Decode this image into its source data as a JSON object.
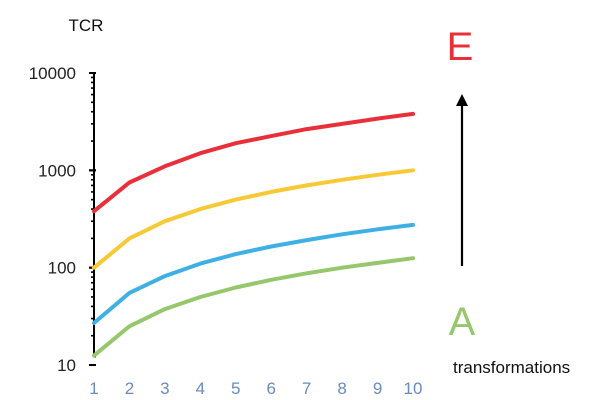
{
  "chart_data": {
    "type": "line",
    "title": "",
    "ylabel": "TCR",
    "xlabel": "transformations",
    "y_scale": "log",
    "ylim": [
      10,
      10000
    ],
    "y_ticks": [
      10,
      100,
      1000,
      10000
    ],
    "y_tick_labels": [
      "10",
      "100",
      "1000",
      "10000"
    ],
    "x": [
      1,
      2,
      3,
      4,
      5,
      6,
      7,
      8,
      9,
      10
    ],
    "x_tick_labels": [
      "1",
      "2",
      "3",
      "4",
      "5",
      "6",
      "7",
      "8",
      "9",
      "10"
    ],
    "series": [
      {
        "color": "#e8303a",
        "values": [
          380,
          750,
          1100,
          1500,
          1900,
          2250,
          2650,
          3000,
          3400,
          3800
        ]
      },
      {
        "color": "#f6c935",
        "values": [
          100,
          200,
          300,
          400,
          500,
          600,
          700,
          800,
          900,
          1000
        ]
      },
      {
        "color": "#3fb0e4",
        "values": [
          27,
          55,
          82,
          110,
          138,
          165,
          192,
          220,
          248,
          275
        ]
      },
      {
        "color": "#96c76d",
        "values": [
          12.5,
          25,
          37.5,
          50,
          62.5,
          75,
          87.5,
          100,
          112,
          125
        ]
      }
    ],
    "annotations": {
      "top_letter": "E",
      "bottom_letter": "A",
      "top_letter_color": "#e8303a",
      "bottom_letter_color": "#96c76d"
    },
    "grid": false,
    "legend": "none"
  }
}
